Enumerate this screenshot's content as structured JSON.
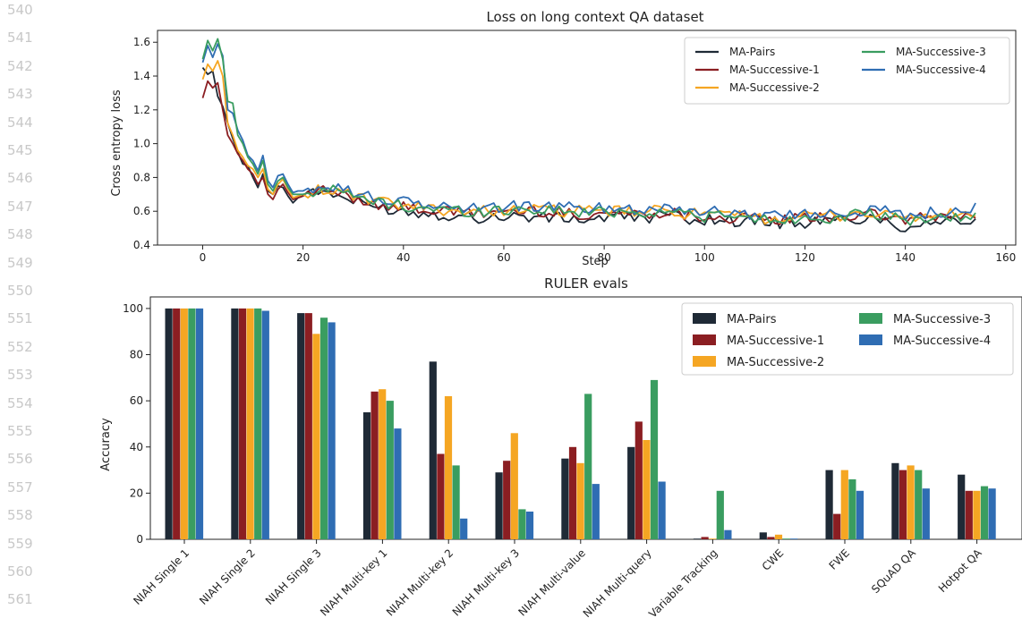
{
  "line_numbers": [
    "540",
    "541",
    "542",
    "543",
    "544",
    "545",
    "546",
    "547",
    "548",
    "549",
    "550",
    "551",
    "552",
    "553",
    "554",
    "555",
    "556",
    "557",
    "558",
    "559",
    "560",
    "561"
  ],
  "colors": {
    "MA-Pairs": "#1f2a36",
    "MA-Successive-1": "#8b1e22",
    "MA-Successive-2": "#f5a623",
    "MA-Successive-3": "#3a9d60",
    "MA-Successive-4": "#2f6db3"
  },
  "chart_data": [
    {
      "type": "line",
      "title": "Loss on long context QA dataset",
      "xlabel": "Step",
      "ylabel": "Cross entropy loss",
      "xlim": [
        -9,
        162
      ],
      "ylim": [
        0.4,
        1.67
      ],
      "xticks": [
        "0",
        "20",
        "40",
        "60",
        "80",
        "100",
        "120",
        "140",
        "160"
      ],
      "yticks": [
        "0.4",
        "0.6",
        "0.8",
        "1.0",
        "1.2",
        "1.4",
        "1.6"
      ],
      "legend": "top-right",
      "grid": false,
      "anchors_x": [
        0,
        1,
        2,
        3,
        4,
        5,
        6,
        7,
        8,
        9,
        10,
        11,
        12,
        13,
        14,
        15,
        16,
        17,
        18,
        19,
        20,
        24,
        28,
        32,
        36,
        40,
        44,
        48,
        52,
        56,
        60,
        64,
        68,
        72,
        76,
        80,
        84,
        88,
        92,
        96,
        100,
        104,
        108,
        112,
        116,
        120,
        124,
        128,
        132,
        136,
        140,
        144,
        148,
        152,
        154
      ],
      "series": [
        {
          "name": "MA-Pairs",
          "values": [
            1.45,
            1.41,
            1.43,
            1.28,
            1.22,
            1.12,
            1.03,
            0.95,
            0.88,
            0.87,
            0.8,
            0.74,
            0.82,
            0.72,
            0.7,
            0.75,
            0.74,
            0.69,
            0.65,
            0.68,
            0.69,
            0.72,
            0.68,
            0.64,
            0.62,
            0.6,
            0.59,
            0.58,
            0.57,
            0.56,
            0.57,
            0.57,
            0.56,
            0.56,
            0.55,
            0.56,
            0.57,
            0.56,
            0.58,
            0.56,
            0.55,
            0.55,
            0.54,
            0.54,
            0.53,
            0.53,
            0.54,
            0.55,
            0.56,
            0.55,
            0.5,
            0.54,
            0.55,
            0.54,
            0.54
          ]
        },
        {
          "name": "MA-Successive-1",
          "values": [
            1.27,
            1.37,
            1.33,
            1.36,
            1.2,
            1.05,
            1.0,
            0.94,
            0.9,
            0.85,
            0.82,
            0.76,
            0.8,
            0.7,
            0.67,
            0.73,
            0.76,
            0.71,
            0.67,
            0.68,
            0.69,
            0.72,
            0.7,
            0.66,
            0.64,
            0.62,
            0.61,
            0.6,
            0.59,
            0.59,
            0.6,
            0.6,
            0.6,
            0.59,
            0.58,
            0.59,
            0.59,
            0.58,
            0.6,
            0.58,
            0.57,
            0.56,
            0.56,
            0.55,
            0.55,
            0.56,
            0.56,
            0.57,
            0.58,
            0.57,
            0.55,
            0.56,
            0.57,
            0.57,
            0.57
          ]
        },
        {
          "name": "MA-Successive-2",
          "values": [
            1.38,
            1.47,
            1.43,
            1.49,
            1.4,
            1.12,
            1.05,
            0.96,
            0.92,
            0.87,
            0.85,
            0.8,
            0.85,
            0.73,
            0.7,
            0.76,
            0.79,
            0.73,
            0.68,
            0.69,
            0.7,
            0.73,
            0.71,
            0.67,
            0.65,
            0.63,
            0.62,
            0.61,
            0.6,
            0.6,
            0.61,
            0.61,
            0.61,
            0.6,
            0.6,
            0.6,
            0.6,
            0.59,
            0.61,
            0.59,
            0.58,
            0.57,
            0.57,
            0.56,
            0.56,
            0.57,
            0.57,
            0.58,
            0.59,
            0.58,
            0.56,
            0.57,
            0.58,
            0.58,
            0.58
          ]
        },
        {
          "name": "MA-Successive-3",
          "values": [
            1.5,
            1.61,
            1.55,
            1.62,
            1.5,
            1.25,
            1.24,
            1.05,
            1.0,
            0.92,
            0.88,
            0.82,
            0.9,
            0.76,
            0.72,
            0.78,
            0.8,
            0.74,
            0.7,
            0.7,
            0.7,
            0.74,
            0.71,
            0.67,
            0.65,
            0.63,
            0.62,
            0.61,
            0.6,
            0.6,
            0.61,
            0.61,
            0.61,
            0.6,
            0.59,
            0.6,
            0.6,
            0.59,
            0.6,
            0.59,
            0.57,
            0.57,
            0.56,
            0.55,
            0.55,
            0.56,
            0.56,
            0.57,
            0.58,
            0.57,
            0.54,
            0.56,
            0.56,
            0.56,
            0.58
          ]
        },
        {
          "name": "MA-Successive-4",
          "values": [
            1.48,
            1.58,
            1.51,
            1.59,
            1.52,
            1.2,
            1.18,
            1.08,
            1.02,
            0.93,
            0.9,
            0.84,
            0.93,
            0.78,
            0.74,
            0.81,
            0.82,
            0.76,
            0.71,
            0.72,
            0.72,
            0.76,
            0.74,
            0.69,
            0.67,
            0.65,
            0.64,
            0.63,
            0.62,
            0.62,
            0.63,
            0.63,
            0.63,
            0.62,
            0.62,
            0.62,
            0.62,
            0.61,
            0.63,
            0.61,
            0.6,
            0.59,
            0.59,
            0.58,
            0.58,
            0.58,
            0.59,
            0.6,
            0.61,
            0.6,
            0.58,
            0.59,
            0.6,
            0.6,
            0.62
          ]
        }
      ]
    },
    {
      "type": "bar",
      "title": "RULER evals",
      "xlabel": "",
      "ylabel": "Accuracy",
      "ylim": [
        0,
        105
      ],
      "yticks": [
        "0",
        "20",
        "40",
        "60",
        "80",
        "100"
      ],
      "legend": "top-right",
      "grid": false,
      "categories": [
        "NIAH Single 1",
        "NIAH Single 2",
        "NIAH Single 3",
        "NIAH Multi-key 1",
        "NIAH Multi-key 2",
        "NIAH Multi-key 3",
        "NIAH Multi-value",
        "NIAH Multi-query",
        "Variable Tracking",
        "CWE",
        "FWE",
        "SQuAD QA",
        "Hotpot QA"
      ],
      "series": [
        {
          "name": "MA-Pairs",
          "values": [
            100,
            100,
            98,
            55,
            77,
            29,
            35,
            40,
            0.3,
            3,
            30,
            33,
            28
          ]
        },
        {
          "name": "MA-Successive-1",
          "values": [
            100,
            100,
            98,
            64,
            37,
            34,
            40,
            51,
            1,
            1,
            11,
            30,
            21
          ]
        },
        {
          "name": "MA-Successive-2",
          "values": [
            100,
            100,
            89,
            65,
            62,
            46,
            33,
            43,
            0.3,
            2,
            30,
            32,
            21
          ]
        },
        {
          "name": "MA-Successive-3",
          "values": [
            100,
            100,
            96,
            60,
            32,
            13,
            63,
            69,
            21,
            0.3,
            26,
            30,
            23
          ]
        },
        {
          "name": "MA-Successive-4",
          "values": [
            100,
            99,
            94,
            48,
            9,
            12,
            24,
            25,
            4,
            0.3,
            21,
            22,
            22
          ]
        }
      ]
    }
  ]
}
